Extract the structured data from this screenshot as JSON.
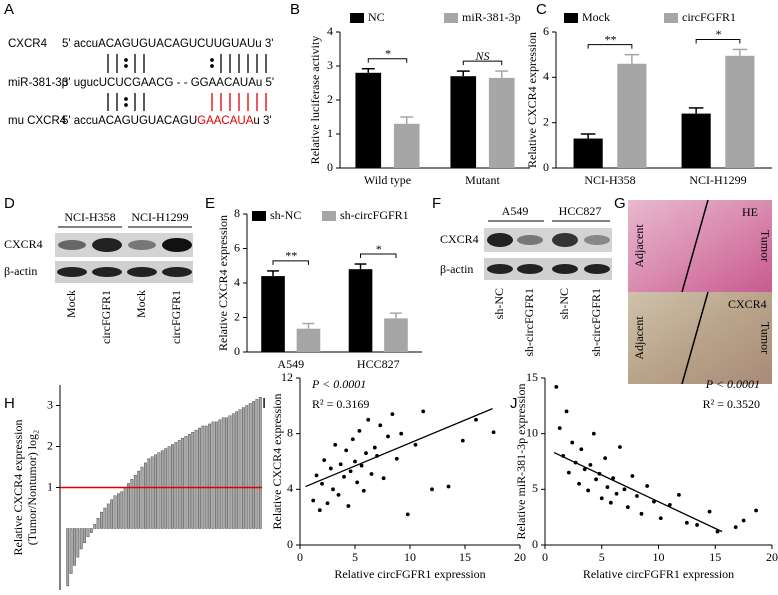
{
  "panel_labels": [
    "A",
    "B",
    "C",
    "D",
    "E",
    "F",
    "G",
    "H",
    "I",
    "J"
  ],
  "sequence_alignment": {
    "rows": [
      {
        "label": "CXCR4",
        "sequence": "5' accuACAGUGUACAGUCUUGUAUu 3'"
      },
      {
        "label": "miR-381-3p",
        "sequence": "3' ugucUCUCGAACG - - GGAACAUAu 5'"
      },
      {
        "label": "mu CXCR4",
        "prefix": "5' accuACAGUGUACAGU",
        "mutant": "GAACAUA",
        "suffix": "u 3'"
      }
    ]
  },
  "blot_d": {
    "groups": [
      "NCI-H358",
      "NCI-H1299"
    ],
    "rows": [
      "CXCR4",
      "β-actin"
    ],
    "lanes": [
      "Mock",
      "circFGFR1",
      "Mock",
      "circFGFR1"
    ]
  },
  "blot_f": {
    "groups": [
      "A549",
      "HCC827"
    ],
    "rows": [
      "CXCR4",
      "β-actin"
    ],
    "lanes": [
      "sh-NC",
      "sh-circFGFR1",
      "sh-NC",
      "sh-circFGFR1"
    ]
  },
  "histology": {
    "top": {
      "stain": "HE",
      "left": "Adjacent",
      "right": "Tumor"
    },
    "bottom": {
      "stain": "CXCR4",
      "left": "Adjacent",
      "right": "Tumor"
    }
  },
  "chart_data": [
    {
      "type": "bar",
      "ylabel": "Relative luciferase activity",
      "categories": [
        "Wild type",
        "Mutant"
      ],
      "series": [
        {
          "name": "NC",
          "color": "#000000",
          "values": [
            2.8,
            2.7
          ],
          "errors": [
            0.12,
            0.15
          ]
        },
        {
          "name": "miR-381-3p",
          "color": "#a6a6a6",
          "values": [
            1.3,
            2.65
          ],
          "errors": [
            0.2,
            0.2
          ]
        }
      ],
      "significance": [
        "*",
        "NS"
      ],
      "ylim": [
        0,
        4
      ],
      "yticks": [
        0,
        1,
        2,
        3,
        4
      ]
    },
    {
      "type": "bar",
      "ylabel": "Relative CXCR4 expression",
      "categories": [
        "NCI-H358",
        "NCI-H1299"
      ],
      "series": [
        {
          "name": "Mock",
          "color": "#000000",
          "values": [
            1.3,
            2.4
          ],
          "errors": [
            0.2,
            0.25
          ]
        },
        {
          "name": "circFGFR1",
          "color": "#a6a6a6",
          "values": [
            4.6,
            4.95
          ],
          "errors": [
            0.4,
            0.28
          ]
        }
      ],
      "significance": [
        "**",
        "*"
      ],
      "ylim": [
        0,
        6
      ],
      "yticks": [
        0,
        2,
        4,
        6
      ]
    },
    {
      "type": "bar",
      "ylabel": "Relative CXCR4 expression",
      "categories": [
        "A549",
        "HCC827"
      ],
      "series": [
        {
          "name": "sh-NC",
          "color": "#000000",
          "values": [
            4.4,
            4.8
          ],
          "errors": [
            0.3,
            0.3
          ]
        },
        {
          "name": "sh-circFGFR1",
          "color": "#a6a6a6",
          "values": [
            1.35,
            1.95
          ],
          "errors": [
            0.3,
            0.3
          ]
        }
      ],
      "significance": [
        "**",
        "*"
      ],
      "ylim": [
        0,
        8
      ],
      "yticks": [
        0,
        2,
        4,
        6,
        8
      ]
    },
    {
      "type": "waterfall",
      "ylabel": [
        "Relative CXCR4 expression",
        "(Tumor/Nontumor) log₂"
      ],
      "color": "#a6a6a6",
      "values": [
        -1.4,
        -1.1,
        -0.9,
        -0.7,
        -0.5,
        -0.35,
        -0.2,
        -0.1,
        0.1,
        0.25,
        0.4,
        0.5,
        0.6,
        0.7,
        0.8,
        0.85,
        0.9,
        1.0,
        1.1,
        1.2,
        1.3,
        1.4,
        1.5,
        1.6,
        1.7,
        1.75,
        1.8,
        1.85,
        1.9,
        1.95,
        2.0,
        2.05,
        2.1,
        2.15,
        2.2,
        2.25,
        2.3,
        2.35,
        2.4,
        2.45,
        2.5,
        2.5,
        2.55,
        2.6,
        2.6,
        2.65,
        2.7,
        2.7,
        2.75,
        2.8,
        2.85,
        2.9,
        2.95,
        3.0,
        3.05,
        3.1,
        3.15,
        3.2
      ],
      "reference_line": {
        "value": 1,
        "color": "#e00000"
      },
      "ylim": [
        -1.5,
        3.5
      ],
      "yticks": [
        1,
        2,
        3
      ]
    },
    {
      "type": "scatter",
      "xlabel": "Relative circFGFR1 expression",
      "ylabel": "Relative CXCR4 expression",
      "annotations": [
        "P < 0.0001",
        "R² = 0.3169"
      ],
      "x": [
        1.2,
        1.5,
        1.8,
        2.0,
        2.2,
        2.5,
        2.8,
        3.0,
        3.2,
        3.5,
        3.7,
        4.0,
        4.2,
        4.4,
        4.6,
        4.8,
        5.0,
        5.2,
        5.4,
        5.6,
        5.8,
        6.0,
        6.2,
        6.5,
        6.8,
        7.0,
        7.3,
        7.6,
        8.0,
        8.4,
        8.8,
        9.2,
        9.8,
        10.5,
        11.2,
        12.0,
        13.5,
        14.8,
        16.0,
        17.6
      ],
      "y": [
        3.2,
        5.0,
        2.5,
        4.4,
        6.1,
        3.0,
        5.5,
        4.0,
        7.2,
        3.6,
        5.8,
        4.9,
        6.8,
        2.8,
        5.3,
        7.6,
        6.0,
        4.5,
        8.2,
        5.7,
        3.9,
        6.6,
        9.0,
        5.1,
        7.0,
        6.4,
        8.6,
        4.8,
        7.8,
        9.4,
        6.2,
        8.0,
        2.2,
        7.2,
        9.6,
        4.0,
        4.2,
        7.5,
        9.0,
        8.1
      ],
      "trend_line": {
        "x": [
          0.5,
          17.5
        ],
        "y": [
          4.2,
          9.8
        ]
      },
      "xlim": [
        0,
        20
      ],
      "xticks": [
        0,
        5,
        10,
        15,
        20
      ],
      "ylim": [
        0,
        12
      ],
      "yticks": [
        0,
        4,
        8,
        12
      ]
    },
    {
      "type": "scatter",
      "xlabel": "Relative circFGFR1 expression",
      "ylabel": "Relative miR-381-3p expression",
      "annotations": [
        "P < 0.0001",
        "R² = 0.3520"
      ],
      "x": [
        1.0,
        1.3,
        1.6,
        1.9,
        2.1,
        2.4,
        2.7,
        3.0,
        3.2,
        3.5,
        3.8,
        4.0,
        4.3,
        4.5,
        4.8,
        5.0,
        5.3,
        5.5,
        5.8,
        6.0,
        6.3,
        6.6,
        7.0,
        7.3,
        7.7,
        8.1,
        8.5,
        9.0,
        9.6,
        10.2,
        11.0,
        11.8,
        12.5,
        13.4,
        14.5,
        15.2,
        16.8,
        17.5,
        18.6
      ],
      "y": [
        14.2,
        10.5,
        8.0,
        12.0,
        6.5,
        9.2,
        7.4,
        5.5,
        8.6,
        6.8,
        4.9,
        7.2,
        10.0,
        5.9,
        6.4,
        4.2,
        7.8,
        5.2,
        3.8,
        6.0,
        4.6,
        8.8,
        5.0,
        3.4,
        6.2,
        4.4,
        2.8,
        5.3,
        3.9,
        2.4,
        3.6,
        4.5,
        2.0,
        1.8,
        3.0,
        1.2,
        1.6,
        2.2,
        3.1
      ],
      "trend_line": {
        "x": [
          0.8,
          15.6
        ],
        "y": [
          8.3,
          1.2
        ]
      },
      "xlim": [
        0,
        20
      ],
      "xticks": [
        0,
        5,
        10,
        15,
        20
      ],
      "ylim": [
        0,
        15
      ],
      "yticks": [
        0,
        5,
        10,
        15
      ]
    }
  ]
}
